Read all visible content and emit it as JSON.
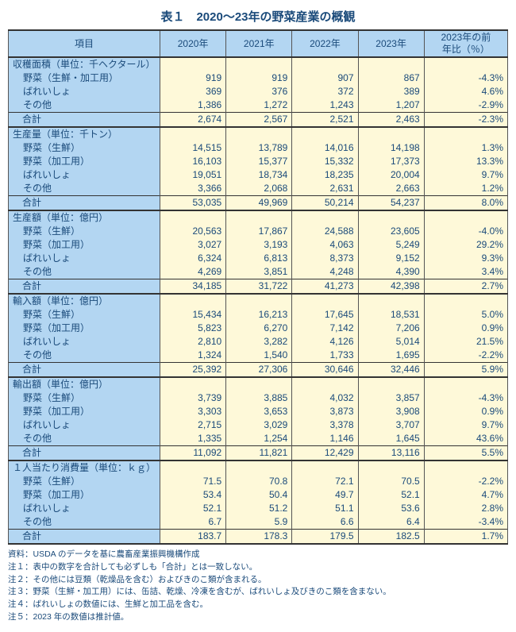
{
  "title": "表１　2020～23年の野菜産業の概観",
  "columns": [
    "項目",
    "2020年",
    "2021年",
    "2022年",
    "2023年",
    "2023年の前\n年比（％）"
  ],
  "column_widths": [
    "26%",
    "14%",
    "14%",
    "14%",
    "14%",
    "18%"
  ],
  "header_bg": "#b3d6f2",
  "cell_bg": "#fef9d9",
  "text_color": "#1a4a7a",
  "title_fontsize": 15,
  "body_fontsize": 12,
  "notes_fontsize": 10.5,
  "sections": [
    {
      "header": "収穫面積（単位：千ヘクタール）",
      "rows": [
        {
          "label": "野菜（生鮮・加工用）",
          "values": [
            "919",
            "919",
            "907",
            "867",
            "-4.3%"
          ]
        },
        {
          "label": "ばれいしょ",
          "values": [
            "369",
            "376",
            "372",
            "389",
            "4.6%"
          ]
        },
        {
          "label": "その他",
          "values": [
            "1,386",
            "1,272",
            "1,243",
            "1,207",
            "-2.9%"
          ]
        }
      ],
      "total": {
        "label": "合計",
        "values": [
          "2,674",
          "2,567",
          "2,521",
          "2,463",
          "-2.3%"
        ]
      }
    },
    {
      "header": "生産量（単位：千トン）",
      "rows": [
        {
          "label": "野菜（生鮮）",
          "values": [
            "14,515",
            "13,789",
            "14,016",
            "14,198",
            "1.3%"
          ]
        },
        {
          "label": "野菜（加工用）",
          "values": [
            "16,103",
            "15,377",
            "15,332",
            "17,373",
            "13.3%"
          ]
        },
        {
          "label": "ばれいしょ",
          "values": [
            "19,051",
            "18,734",
            "18,235",
            "20,004",
            "9.7%"
          ]
        },
        {
          "label": "その他",
          "values": [
            "3,366",
            "2,068",
            "2,631",
            "2,663",
            "1.2%"
          ]
        }
      ],
      "total": {
        "label": "合計",
        "values": [
          "53,035",
          "49,969",
          "50,214",
          "54,237",
          "8.0%"
        ]
      }
    },
    {
      "header": "生産額（単位：億円）",
      "rows": [
        {
          "label": "野菜（生鮮）",
          "values": [
            "20,563",
            "17,867",
            "24,588",
            "23,605",
            "-4.0%"
          ]
        },
        {
          "label": "野菜（加工用）",
          "values": [
            "3,027",
            "3,193",
            "4,063",
            "5,249",
            "29.2%"
          ]
        },
        {
          "label": "ばれいしょ",
          "values": [
            "6,324",
            "6,813",
            "8,373",
            "9,152",
            "9.3%"
          ]
        },
        {
          "label": "その他",
          "values": [
            "4,269",
            "3,851",
            "4,248",
            "4,390",
            "3.4%"
          ]
        }
      ],
      "total": {
        "label": "合計",
        "values": [
          "34,185",
          "31,722",
          "41,273",
          "42,398",
          "2.7%"
        ]
      }
    },
    {
      "header": "輸入額（単位：億円）",
      "rows": [
        {
          "label": "野菜（生鮮）",
          "values": [
            "15,434",
            "16,213",
            "17,645",
            "18,531",
            "5.0%"
          ]
        },
        {
          "label": "野菜（加工用）",
          "values": [
            "5,823",
            "6,270",
            "7,142",
            "7,206",
            "0.9%"
          ]
        },
        {
          "label": "ばれいしょ",
          "values": [
            "2,810",
            "3,282",
            "4,126",
            "5,014",
            "21.5%"
          ]
        },
        {
          "label": "その他",
          "values": [
            "1,324",
            "1,540",
            "1,733",
            "1,695",
            "-2.2%"
          ]
        }
      ],
      "total": {
        "label": "合計",
        "values": [
          "25,392",
          "27,306",
          "30,646",
          "32,446",
          "5.9%"
        ]
      }
    },
    {
      "header": "輸出額（単位：億円）",
      "rows": [
        {
          "label": "野菜（生鮮）",
          "values": [
            "3,739",
            "3,885",
            "4,032",
            "3,857",
            "-4.3%"
          ]
        },
        {
          "label": "野菜（加工用）",
          "values": [
            "3,303",
            "3,653",
            "3,873",
            "3,908",
            "0.9%"
          ]
        },
        {
          "label": "ばれいしょ",
          "values": [
            "2,715",
            "3,029",
            "3,378",
            "3,707",
            "9.7%"
          ]
        },
        {
          "label": "その他",
          "values": [
            "1,335",
            "1,254",
            "1,146",
            "1,645",
            "43.6%"
          ]
        }
      ],
      "total": {
        "label": "合計",
        "values": [
          "11,092",
          "11,821",
          "12,429",
          "13,116",
          "5.5%"
        ]
      }
    },
    {
      "header": "１人当たり消費量（単位：ｋｇ）",
      "rows": [
        {
          "label": "野菜（生鮮）",
          "values": [
            "71.5",
            "70.8",
            "72.1",
            "70.5",
            "-2.2%"
          ]
        },
        {
          "label": "野菜（加工用）",
          "values": [
            "53.4",
            "50.4",
            "49.7",
            "52.1",
            "4.7%"
          ]
        },
        {
          "label": "ばれいしょ",
          "values": [
            "52.1",
            "51.2",
            "51.1",
            "53.6",
            "2.8%"
          ]
        },
        {
          "label": "その他",
          "values": [
            "6.7",
            "5.9",
            "6.6",
            "6.4",
            "-3.4%"
          ]
        }
      ],
      "total": {
        "label": "合計",
        "values": [
          "183.7",
          "178.3",
          "179.5",
          "182.5",
          "1.7%"
        ]
      }
    }
  ],
  "notes": [
    "資料：USDA のデータを基に農畜産業振興機構作成",
    "注１：表中の数字を合計しても必ずしも「合計」とは一致しない。",
    "注２：その他には豆類（乾燥品を含む）およびきのこ類が含まれる。",
    "注３：野菜（生鮮・加工用）には、缶詰、乾燥、冷凍を含むが、ばれいしょ及びきのこ類を含まない。",
    "注４：ばれいしょの数値には、生鮮と加工品を含む。",
    "注５：2023 年の数値は推計値。"
  ]
}
